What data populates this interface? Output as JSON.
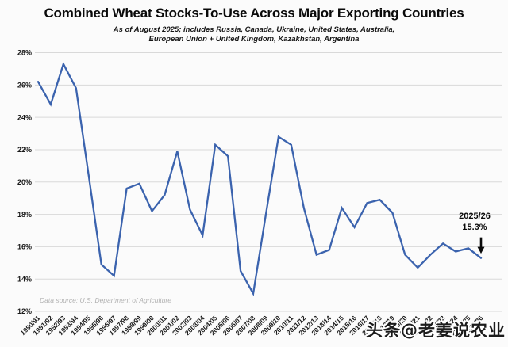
{
  "title": "Combined Wheat Stocks-To-Use Across Major Exporting Countries",
  "subtitle_line1": "As of August 2025; includes Russia, Canada, Ukraine, United States, Australia,",
  "subtitle_line2": "European Union + United Kingdom, Kazakhstan, Argentina",
  "annotation": {
    "year": "2025/26",
    "value": "15.3%"
  },
  "source": "Data source: U.S. Department of Agriculture",
  "watermark": "头条@老姜说农业",
  "colors": {
    "line": "#3b63ae",
    "grid": "#d9d9d9",
    "axis_text": "#1a1a1a",
    "annotation_arrow": "#0a0a0a"
  },
  "chart_data": {
    "type": "line",
    "title": "Combined Wheat Stocks-To-Use Across Major Exporting Countries",
    "xlabel": "",
    "ylabel": "",
    "ylim": [
      12,
      28
    ],
    "ytick_step": 2,
    "ytick_suffix": "%",
    "grid": true,
    "legend_position": "none",
    "categories": [
      "1990/91",
      "1991/92",
      "1992/93",
      "1993/94",
      "1994/95",
      "1995/96",
      "1996/97",
      "1997/98",
      "1998/99",
      "1999/00",
      "2000/01",
      "2001/02",
      "2002/03",
      "2003/04",
      "2004/05",
      "2005/06",
      "2006/07",
      "2007/08",
      "2008/09",
      "2009/10",
      "2010/11",
      "2011/12",
      "2012/13",
      "2013/14",
      "2014/15",
      "2015/16",
      "2016/17",
      "2017/18",
      "2018/19",
      "2019/20",
      "2020/21",
      "2021/22",
      "2022/23",
      "2023/24",
      "2024/25",
      "2025/26"
    ],
    "values": [
      26.2,
      24.8,
      27.3,
      25.8,
      20.4,
      14.9,
      14.2,
      19.6,
      19.9,
      18.2,
      19.2,
      21.9,
      18.3,
      16.7,
      22.3,
      21.6,
      14.5,
      13.1,
      18.0,
      22.8,
      22.3,
      18.4,
      15.5,
      15.8,
      18.4,
      17.2,
      18.7,
      18.9,
      18.1,
      15.5,
      14.7,
      15.5,
      16.2,
      15.7,
      15.9,
      15.3
    ],
    "annotated_point": {
      "category": "2025/26",
      "value": 15.3
    }
  }
}
